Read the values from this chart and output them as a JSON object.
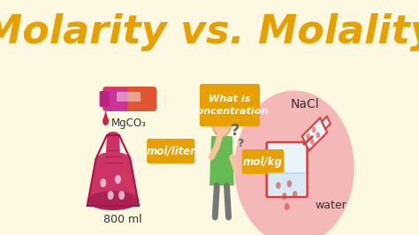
{
  "bg_color": "#fdf8e1",
  "title": "Molarity vs. Molality",
  "title_color": "#e8a000",
  "title_fontsize": 32,
  "label_mgco3": "MgCO₃",
  "label_800ml": "800 ml",
  "label_mol_liter": "mol/liter",
  "label_mol_kg": "mol/kg",
  "label_nacl": "NaCl",
  "label_water": "water",
  "label_what_is": "What is\nconcentration",
  "pink_circle_color": "#f4b8b8",
  "orange_label_bg": "#e8a000",
  "flask_red": "#cc3366",
  "flask_orange": "#dd5522",
  "drop_color": "#cc2244",
  "person_skin": "#f5c5a0",
  "person_hair": "#8b4513",
  "person_shirt": "#66bb55",
  "beaker_color": "#d44040",
  "beaker_fill": "#e8f4f8"
}
